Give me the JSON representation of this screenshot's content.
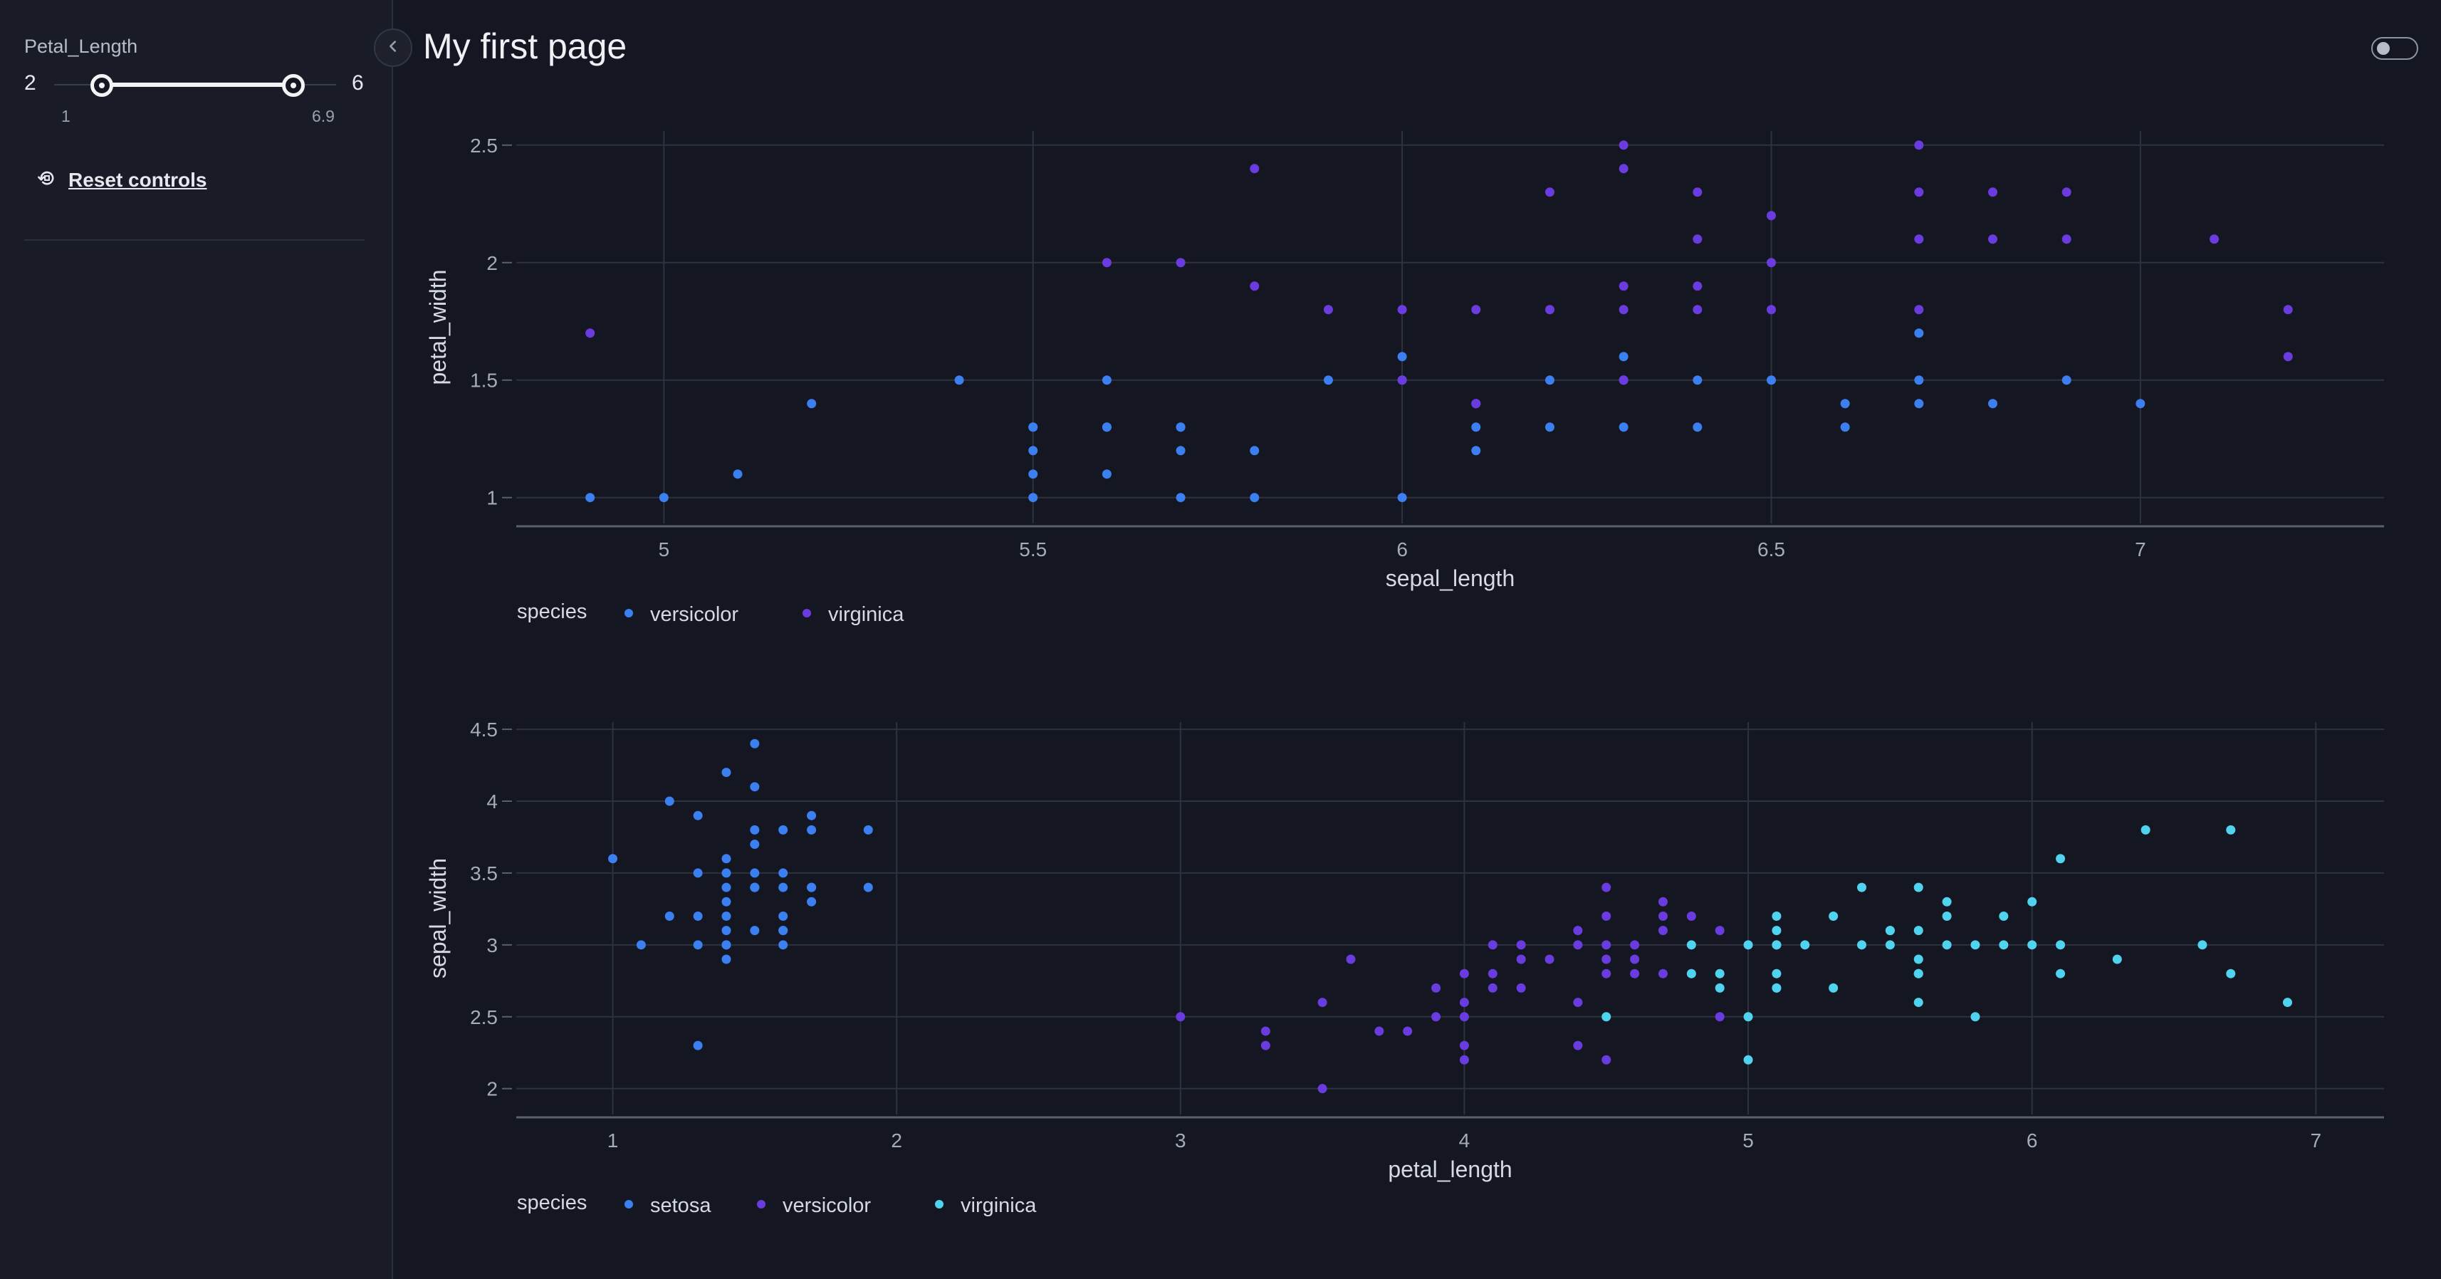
{
  "sidebar": {
    "slider": {
      "title": "Petal_Length",
      "min_label": "1",
      "max_label": "6.9",
      "range_min": 1,
      "range_max": 6.9,
      "value_low": 2,
      "value_high": 6,
      "value_low_label": "2",
      "value_high_label": "6"
    },
    "reset_label": "Reset controls"
  },
  "page": {
    "title": "My first page"
  },
  "colors": {
    "setosa": "#3b7ff0",
    "versicolor": "#3b7ff0",
    "virginica": "#6a3ce0",
    "chart2_setosa": "#3b7ff0",
    "chart2_versicolor": "#6a3ce0",
    "chart2_virginica": "#4fd3ee",
    "grid": "#2e323e"
  },
  "icons": {
    "reset": "reset-icon",
    "collapse": "chevron-left-icon",
    "theme": "toggle-icon"
  },
  "chart_data": [
    {
      "type": "scatter",
      "title": "",
      "xlabel": "sepal_length",
      "ylabel": "petal_width",
      "xlim": [
        4.8,
        7.33
      ],
      "ylim": [
        0.89,
        2.56
      ],
      "xticks": [
        5,
        5.5,
        6,
        6.5,
        7
      ],
      "yticks": [
        1,
        1.5,
        2,
        2.5
      ],
      "legend_title": "species",
      "legend_position": "bottom-left",
      "grid": true,
      "series": [
        {
          "name": "versicolor",
          "x": [
            4.9,
            5.0,
            5.1,
            5.2,
            5.4,
            5.5,
            5.5,
            5.5,
            5.5,
            5.5,
            5.6,
            5.6,
            5.6,
            5.6,
            5.7,
            5.7,
            5.7,
            5.7,
            5.8,
            5.8,
            5.9,
            6.0,
            6.0,
            6.0,
            6.1,
            6.1,
            6.1,
            6.2,
            6.2,
            6.3,
            6.3,
            6.3,
            6.4,
            6.4,
            6.5,
            6.6,
            6.6,
            6.7,
            6.7,
            6.7,
            6.8,
            6.9,
            7.0
          ],
          "y": [
            1.0,
            1.0,
            1.1,
            1.4,
            1.5,
            1.0,
            1.1,
            1.2,
            1.3,
            1.3,
            1.1,
            1.3,
            1.3,
            1.5,
            1.0,
            1.2,
            1.3,
            1.3,
            1.0,
            1.2,
            1.5,
            1.0,
            1.5,
            1.6,
            1.2,
            1.3,
            1.4,
            1.3,
            1.5,
            1.3,
            1.5,
            1.6,
            1.3,
            1.5,
            1.5,
            1.3,
            1.4,
            1.4,
            1.5,
            1.7,
            1.4,
            1.5,
            1.4
          ]
        },
        {
          "name": "virginica",
          "x": [
            4.9,
            5.6,
            5.7,
            5.8,
            5.8,
            5.9,
            6.0,
            6.0,
            6.1,
            6.1,
            6.2,
            6.2,
            6.3,
            6.3,
            6.3,
            6.3,
            6.3,
            6.4,
            6.4,
            6.4,
            6.4,
            6.5,
            6.5,
            6.5,
            6.7,
            6.7,
            6.7,
            6.7,
            6.8,
            6.8,
            6.9,
            6.9,
            7.1,
            7.2,
            7.2
          ],
          "y": [
            1.7,
            2.0,
            2.0,
            1.9,
            2.4,
            1.8,
            1.5,
            1.8,
            1.4,
            1.8,
            1.8,
            2.3,
            1.5,
            1.8,
            1.9,
            2.4,
            2.5,
            1.8,
            1.9,
            2.1,
            2.3,
            1.8,
            2.0,
            2.2,
            1.8,
            2.1,
            2.3,
            2.5,
            2.1,
            2.3,
            2.1,
            2.3,
            2.1,
            1.6,
            1.8
          ]
        }
      ]
    },
    {
      "type": "scatter",
      "title": "",
      "xlabel": "petal_length",
      "ylabel": "sepal_width",
      "xlim": [
        0.66,
        7.24
      ],
      "ylim": [
        1.82,
        4.55
      ],
      "xticks": [
        1,
        2,
        3,
        4,
        5,
        6,
        7
      ],
      "yticks": [
        2,
        2.5,
        3,
        3.5,
        4,
        4.5
      ],
      "legend_title": "species",
      "legend_position": "bottom-left",
      "grid": true,
      "series": [
        {
          "name": "setosa",
          "x": [
            1.0,
            1.1,
            1.2,
            1.2,
            1.3,
            1.3,
            1.3,
            1.3,
            1.3,
            1.4,
            1.4,
            1.4,
            1.4,
            1.4,
            1.4,
            1.4,
            1.4,
            1.4,
            1.4,
            1.5,
            1.5,
            1.5,
            1.5,
            1.5,
            1.5,
            1.5,
            1.5,
            1.5,
            1.6,
            1.6,
            1.6,
            1.6,
            1.6,
            1.6,
            1.6,
            1.7,
            1.7,
            1.7,
            1.7,
            1.7,
            1.9,
            1.9
          ],
          "y": [
            3.6,
            3.0,
            3.2,
            4.0,
            2.3,
            3.0,
            3.2,
            3.5,
            3.9,
            2.9,
            3.0,
            3.2,
            3.3,
            3.4,
            3.5,
            3.6,
            4.2,
            3.0,
            3.1,
            3.1,
            3.4,
            3.5,
            3.7,
            3.8,
            4.1,
            4.4,
            3.4,
            3.4,
            3.0,
            3.1,
            3.2,
            3.4,
            3.5,
            3.8,
            3.1,
            3.3,
            3.4,
            3.8,
            3.9,
            3.4,
            3.4,
            3.8
          ]
        },
        {
          "name": "versicolor",
          "x": [
            3.0,
            3.3,
            3.3,
            3.5,
            3.5,
            3.6,
            3.7,
            3.8,
            3.9,
            3.9,
            4.0,
            4.0,
            4.0,
            4.0,
            4.0,
            4.1,
            4.1,
            4.1,
            4.2,
            4.2,
            4.2,
            4.3,
            4.4,
            4.4,
            4.4,
            4.4,
            4.5,
            4.5,
            4.5,
            4.5,
            4.5,
            4.5,
            4.6,
            4.6,
            4.6,
            4.7,
            4.7,
            4.7,
            4.7,
            4.8,
            4.8,
            4.9,
            4.9,
            5.0,
            5.1
          ],
          "y": [
            2.5,
            2.3,
            2.4,
            2.0,
            2.6,
            2.9,
            2.4,
            2.4,
            2.5,
            2.7,
            2.2,
            2.3,
            2.5,
            2.6,
            2.8,
            2.7,
            2.8,
            3.0,
            2.7,
            2.9,
            3.0,
            2.9,
            2.3,
            2.6,
            3.0,
            3.1,
            2.2,
            2.8,
            2.9,
            3.0,
            3.2,
            3.4,
            2.8,
            2.9,
            3.0,
            2.8,
            3.1,
            3.2,
            3.3,
            2.8,
            3.2,
            2.5,
            3.1,
            3.0,
            2.7
          ]
        },
        {
          "name": "virginica",
          "x": [
            4.5,
            4.8,
            4.8,
            4.9,
            4.9,
            5.0,
            5.0,
            5.0,
            5.1,
            5.1,
            5.1,
            5.1,
            5.1,
            5.1,
            5.2,
            5.3,
            5.3,
            5.4,
            5.4,
            5.5,
            5.5,
            5.5,
            5.6,
            5.6,
            5.6,
            5.6,
            5.6,
            5.6,
            5.7,
            5.7,
            5.7,
            5.8,
            5.8,
            5.9,
            5.9,
            6.0,
            6.0,
            6.1,
            6.1,
            6.1,
            6.3,
            6.4,
            6.6,
            6.7,
            6.7,
            6.9
          ],
          "y": [
            2.5,
            2.8,
            3.0,
            2.7,
            2.8,
            2.2,
            2.5,
            3.0,
            2.7,
            2.8,
            3.0,
            3.1,
            3.2,
            3.0,
            3.0,
            2.7,
            3.2,
            3.0,
            3.4,
            3.0,
            3.1,
            3.1,
            2.6,
            2.8,
            2.9,
            3.1,
            3.4,
            2.8,
            3.2,
            3.3,
            3.0,
            2.5,
            3.0,
            3.0,
            3.2,
            3.0,
            3.3,
            2.8,
            3.0,
            3.6,
            2.9,
            3.8,
            3.0,
            2.8,
            3.8,
            2.6
          ]
        }
      ]
    }
  ]
}
